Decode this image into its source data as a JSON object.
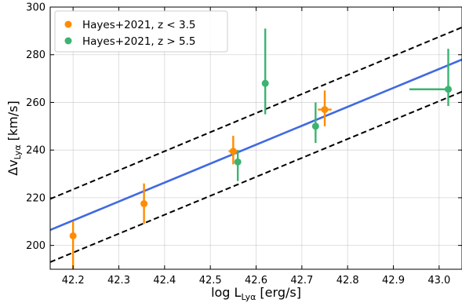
{
  "chart_data": {
    "type": "scatter",
    "xlabel": {
      "main": "log L",
      "sub": "Lyα",
      "unit": " [erg/s]"
    },
    "ylabel": {
      "main": "Δv",
      "sub": "Lyα",
      "unit": " [km/s]"
    },
    "xlim": [
      42.15,
      43.05
    ],
    "ylim": [
      190,
      300
    ],
    "xticks": [
      42.2,
      42.3,
      42.4,
      42.5,
      42.6,
      42.7,
      42.8,
      42.9,
      43.0
    ],
    "xtick_labels": [
      "42.2",
      "42.3",
      "42.4",
      "42.5",
      "42.6",
      "42.7",
      "42.8",
      "42.9",
      "43.0"
    ],
    "yticks": [
      200,
      220,
      240,
      260,
      280,
      300
    ],
    "ytick_labels": [
      "200",
      "220",
      "240",
      "260",
      "280",
      "300"
    ],
    "grid": true,
    "legend_position": "top-left",
    "series": [
      {
        "name": "Hayes+2021, z < 3.5",
        "color": "#ff8c00",
        "points": [
          {
            "x": 42.2,
            "y": 204,
            "yerr": [
              14,
              6
            ],
            "xerr": [
              0,
              0
            ]
          },
          {
            "x": 42.355,
            "y": 217.5,
            "yerr": [
              8.5,
              8.5
            ],
            "xerr": [
              0,
              0
            ]
          },
          {
            "x": 42.55,
            "y": 239.5,
            "yerr": [
              5.5,
              6.5
            ],
            "xerr": [
              0.01,
              0.01
            ]
          },
          {
            "x": 42.75,
            "y": 257,
            "yerr": [
              7,
              8
            ],
            "xerr": [
              0.015,
              0.015
            ]
          }
        ]
      },
      {
        "name": "Hayes+2021, z > 5.5",
        "color": "#3cb371",
        "points": [
          {
            "x": 42.56,
            "y": 235,
            "yerr": [
              8,
              5
            ],
            "xerr": [
              0,
              0
            ]
          },
          {
            "x": 42.62,
            "y": 268,
            "yerr": [
              13,
              23
            ],
            "xerr": [
              0,
              0
            ]
          },
          {
            "x": 42.73,
            "y": 250,
            "yerr": [
              7,
              10
            ],
            "xerr": [
              0,
              0
            ]
          },
          {
            "x": 43.02,
            "y": 265.5,
            "yerr": [
              7,
              17
            ],
            "xerr": [
              0.085,
              0
            ]
          }
        ]
      }
    ],
    "fit_line": {
      "color": "#4169e1",
      "x": [
        42.15,
        43.05
      ],
      "y": [
        206.5,
        278
      ]
    },
    "confidence_lines": [
      {
        "color": "#000000",
        "style": "dashed",
        "x": [
          42.15,
          43.05
        ],
        "y": [
          219.5,
          291.5
        ]
      },
      {
        "color": "#000000",
        "style": "dashed",
        "x": [
          42.15,
          43.05
        ],
        "y": [
          193,
          264.5
        ]
      }
    ]
  }
}
